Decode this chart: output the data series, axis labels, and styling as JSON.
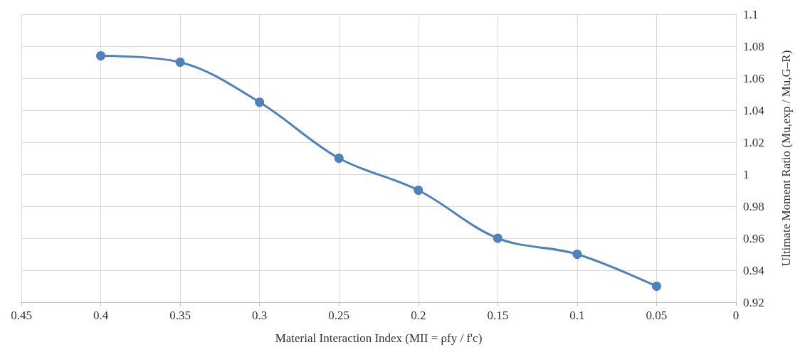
{
  "chart_data": {
    "type": "line",
    "xlabel": "Material Interaction Index (MII = ρfy / f'c)",
    "ylabel": "Ultimate Moment Ratio (Mu,exp / Mu,G–R)",
    "x": [
      0.4,
      0.35,
      0.3,
      0.25,
      0.2,
      0.15,
      0.1,
      0.05
    ],
    "series": [
      {
        "color": "#4f81bd",
        "values": [
          1.074,
          1.07,
          1.045,
          1.01,
          0.99,
          0.96,
          0.95,
          0.93
        ]
      }
    ],
    "xlim": [
      0.45,
      0
    ],
    "xticks": [
      0.45,
      0.4,
      0.35,
      0.3,
      0.25,
      0.2,
      0.15,
      0.1,
      0.05,
      0
    ],
    "ylim": [
      0.92,
      1.1
    ],
    "yticks": [
      0.92,
      0.94,
      0.96,
      0.98,
      1,
      1.02,
      1.04,
      1.06,
      1.08,
      1.1
    ],
    "grid": true,
    "marker": "circle",
    "line_style": "solid"
  }
}
